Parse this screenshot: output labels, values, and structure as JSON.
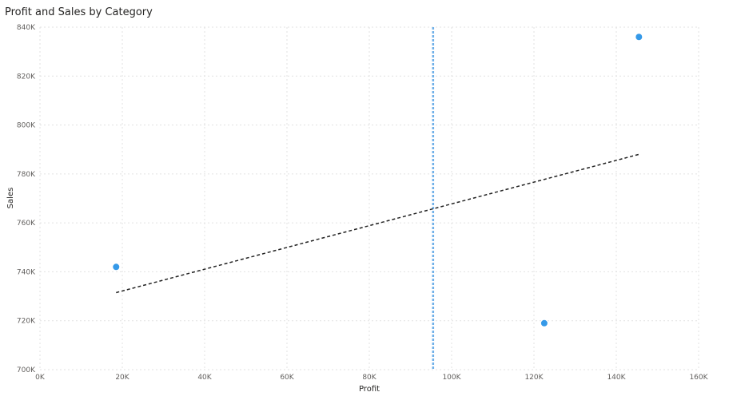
{
  "chart_data": {
    "type": "scatter",
    "title": "Profit and Sales by Category",
    "xlabel": "Profit",
    "ylabel": "Sales",
    "xlim": [
      0,
      160000
    ],
    "ylim": [
      700000,
      840000
    ],
    "x_ticks": [
      {
        "value": 0,
        "label": "0K"
      },
      {
        "value": 20000,
        "label": "20K"
      },
      {
        "value": 40000,
        "label": "40K"
      },
      {
        "value": 60000,
        "label": "60K"
      },
      {
        "value": 80000,
        "label": "80K"
      },
      {
        "value": 100000,
        "label": "100K"
      },
      {
        "value": 120000,
        "label": "120K"
      },
      {
        "value": 140000,
        "label": "140K"
      },
      {
        "value": 160000,
        "label": "160K"
      }
    ],
    "y_ticks": [
      {
        "value": 700000,
        "label": "700K"
      },
      {
        "value": 720000,
        "label": "720K"
      },
      {
        "value": 740000,
        "label": "740K"
      },
      {
        "value": 760000,
        "label": "760K"
      },
      {
        "value": 780000,
        "label": "780K"
      },
      {
        "value": 800000,
        "label": "800K"
      },
      {
        "value": 820000,
        "label": "820K"
      },
      {
        "value": 840000,
        "label": "840K"
      }
    ],
    "points": [
      {
        "x": 18500,
        "y": 742000
      },
      {
        "x": 122500,
        "y": 719000
      },
      {
        "x": 145500,
        "y": 836000
      }
    ],
    "trend_line": {
      "x": [
        18500,
        145500
      ],
      "y": [
        731500,
        788000
      ]
    },
    "reference_line_x": 95500,
    "grid": true,
    "colors": {
      "point": "#3599e8",
      "trend": "#222222",
      "reference": "#6fb0e8",
      "grid": "#e1e1e1"
    }
  }
}
